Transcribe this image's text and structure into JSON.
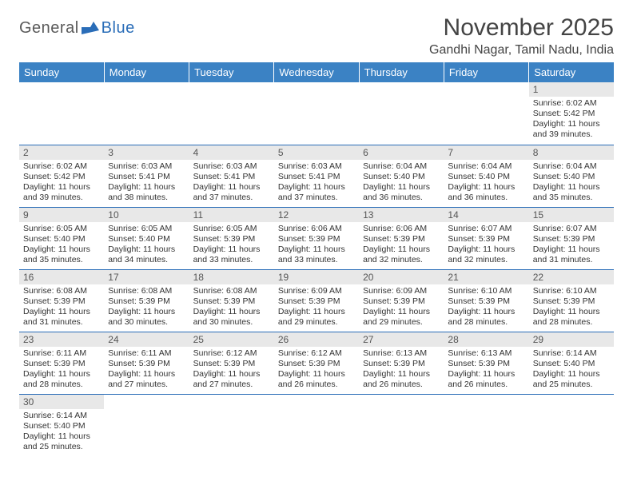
{
  "logo": {
    "part1": "General",
    "part2": "Blue"
  },
  "title": "November 2025",
  "location": "Gandhi Nagar, Tamil Nadu, India",
  "colors": {
    "header_bg": "#3b82c4",
    "header_text": "#ffffff",
    "daynum_bg": "#e8e8e8",
    "border": "#2a6db8",
    "logo_gray": "#5a5a5a",
    "logo_blue": "#2a6db8"
  },
  "weekdays": [
    "Sunday",
    "Monday",
    "Tuesday",
    "Wednesday",
    "Thursday",
    "Friday",
    "Saturday"
  ],
  "weeks": [
    [
      {
        "empty": true
      },
      {
        "empty": true
      },
      {
        "empty": true
      },
      {
        "empty": true
      },
      {
        "empty": true
      },
      {
        "empty": true
      },
      {
        "n": "1",
        "sunrise": "Sunrise: 6:02 AM",
        "sunset": "Sunset: 5:42 PM",
        "daylight": "Daylight: 11 hours and 39 minutes."
      }
    ],
    [
      {
        "n": "2",
        "sunrise": "Sunrise: 6:02 AM",
        "sunset": "Sunset: 5:42 PM",
        "daylight": "Daylight: 11 hours and 39 minutes."
      },
      {
        "n": "3",
        "sunrise": "Sunrise: 6:03 AM",
        "sunset": "Sunset: 5:41 PM",
        "daylight": "Daylight: 11 hours and 38 minutes."
      },
      {
        "n": "4",
        "sunrise": "Sunrise: 6:03 AM",
        "sunset": "Sunset: 5:41 PM",
        "daylight": "Daylight: 11 hours and 37 minutes."
      },
      {
        "n": "5",
        "sunrise": "Sunrise: 6:03 AM",
        "sunset": "Sunset: 5:41 PM",
        "daylight": "Daylight: 11 hours and 37 minutes."
      },
      {
        "n": "6",
        "sunrise": "Sunrise: 6:04 AM",
        "sunset": "Sunset: 5:40 PM",
        "daylight": "Daylight: 11 hours and 36 minutes."
      },
      {
        "n": "7",
        "sunrise": "Sunrise: 6:04 AM",
        "sunset": "Sunset: 5:40 PM",
        "daylight": "Daylight: 11 hours and 36 minutes."
      },
      {
        "n": "8",
        "sunrise": "Sunrise: 6:04 AM",
        "sunset": "Sunset: 5:40 PM",
        "daylight": "Daylight: 11 hours and 35 minutes."
      }
    ],
    [
      {
        "n": "9",
        "sunrise": "Sunrise: 6:05 AM",
        "sunset": "Sunset: 5:40 PM",
        "daylight": "Daylight: 11 hours and 35 minutes."
      },
      {
        "n": "10",
        "sunrise": "Sunrise: 6:05 AM",
        "sunset": "Sunset: 5:40 PM",
        "daylight": "Daylight: 11 hours and 34 minutes."
      },
      {
        "n": "11",
        "sunrise": "Sunrise: 6:05 AM",
        "sunset": "Sunset: 5:39 PM",
        "daylight": "Daylight: 11 hours and 33 minutes."
      },
      {
        "n": "12",
        "sunrise": "Sunrise: 6:06 AM",
        "sunset": "Sunset: 5:39 PM",
        "daylight": "Daylight: 11 hours and 33 minutes."
      },
      {
        "n": "13",
        "sunrise": "Sunrise: 6:06 AM",
        "sunset": "Sunset: 5:39 PM",
        "daylight": "Daylight: 11 hours and 32 minutes."
      },
      {
        "n": "14",
        "sunrise": "Sunrise: 6:07 AM",
        "sunset": "Sunset: 5:39 PM",
        "daylight": "Daylight: 11 hours and 32 minutes."
      },
      {
        "n": "15",
        "sunrise": "Sunrise: 6:07 AM",
        "sunset": "Sunset: 5:39 PM",
        "daylight": "Daylight: 11 hours and 31 minutes."
      }
    ],
    [
      {
        "n": "16",
        "sunrise": "Sunrise: 6:08 AM",
        "sunset": "Sunset: 5:39 PM",
        "daylight": "Daylight: 11 hours and 31 minutes."
      },
      {
        "n": "17",
        "sunrise": "Sunrise: 6:08 AM",
        "sunset": "Sunset: 5:39 PM",
        "daylight": "Daylight: 11 hours and 30 minutes."
      },
      {
        "n": "18",
        "sunrise": "Sunrise: 6:08 AM",
        "sunset": "Sunset: 5:39 PM",
        "daylight": "Daylight: 11 hours and 30 minutes."
      },
      {
        "n": "19",
        "sunrise": "Sunrise: 6:09 AM",
        "sunset": "Sunset: 5:39 PM",
        "daylight": "Daylight: 11 hours and 29 minutes."
      },
      {
        "n": "20",
        "sunrise": "Sunrise: 6:09 AM",
        "sunset": "Sunset: 5:39 PM",
        "daylight": "Daylight: 11 hours and 29 minutes."
      },
      {
        "n": "21",
        "sunrise": "Sunrise: 6:10 AM",
        "sunset": "Sunset: 5:39 PM",
        "daylight": "Daylight: 11 hours and 28 minutes."
      },
      {
        "n": "22",
        "sunrise": "Sunrise: 6:10 AM",
        "sunset": "Sunset: 5:39 PM",
        "daylight": "Daylight: 11 hours and 28 minutes."
      }
    ],
    [
      {
        "n": "23",
        "sunrise": "Sunrise: 6:11 AM",
        "sunset": "Sunset: 5:39 PM",
        "daylight": "Daylight: 11 hours and 28 minutes."
      },
      {
        "n": "24",
        "sunrise": "Sunrise: 6:11 AM",
        "sunset": "Sunset: 5:39 PM",
        "daylight": "Daylight: 11 hours and 27 minutes."
      },
      {
        "n": "25",
        "sunrise": "Sunrise: 6:12 AM",
        "sunset": "Sunset: 5:39 PM",
        "daylight": "Daylight: 11 hours and 27 minutes."
      },
      {
        "n": "26",
        "sunrise": "Sunrise: 6:12 AM",
        "sunset": "Sunset: 5:39 PM",
        "daylight": "Daylight: 11 hours and 26 minutes."
      },
      {
        "n": "27",
        "sunrise": "Sunrise: 6:13 AM",
        "sunset": "Sunset: 5:39 PM",
        "daylight": "Daylight: 11 hours and 26 minutes."
      },
      {
        "n": "28",
        "sunrise": "Sunrise: 6:13 AM",
        "sunset": "Sunset: 5:39 PM",
        "daylight": "Daylight: 11 hours and 26 minutes."
      },
      {
        "n": "29",
        "sunrise": "Sunrise: 6:14 AM",
        "sunset": "Sunset: 5:40 PM",
        "daylight": "Daylight: 11 hours and 25 minutes."
      }
    ],
    [
      {
        "n": "30",
        "sunrise": "Sunrise: 6:14 AM",
        "sunset": "Sunset: 5:40 PM",
        "daylight": "Daylight: 11 hours and 25 minutes."
      },
      {
        "empty": true
      },
      {
        "empty": true
      },
      {
        "empty": true
      },
      {
        "empty": true
      },
      {
        "empty": true
      },
      {
        "empty": true
      }
    ]
  ]
}
